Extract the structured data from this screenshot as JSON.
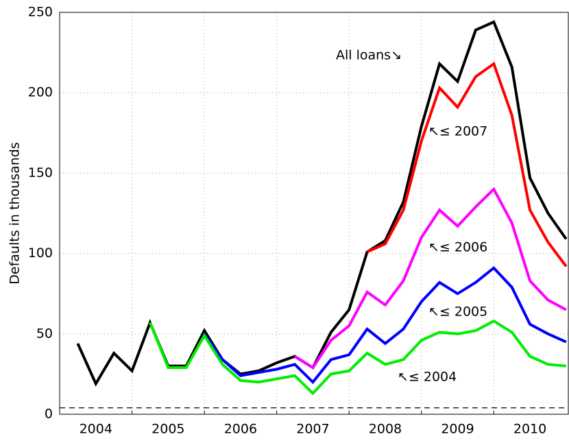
{
  "chart_data": {
    "type": "line",
    "y_label": "Defaults in thousands",
    "x": [
      2004.25,
      2004.5,
      2004.75,
      2005.0,
      2005.25,
      2005.5,
      2005.75,
      2006.0,
      2006.25,
      2006.5,
      2006.75,
      2007.0,
      2007.25,
      2007.5,
      2007.75,
      2008.0,
      2008.25,
      2008.5,
      2008.75,
      2009.0,
      2009.25,
      2009.5,
      2009.75,
      2010.0,
      2010.25,
      2010.5,
      2010.75,
      2011.0
    ],
    "series": [
      {
        "color": "#000000",
        "values": [
          44,
          19,
          38,
          27,
          57,
          30,
          30,
          52,
          34,
          25,
          27,
          32,
          36,
          29,
          51,
          65,
          101,
          108,
          132,
          179,
          218,
          207,
          239,
          244,
          216,
          147,
          125,
          109
        ]
      },
      {
        "color": "#ff0000",
        "values": [
          null,
          null,
          null,
          null,
          null,
          null,
          null,
          null,
          null,
          null,
          null,
          null,
          null,
          null,
          null,
          null,
          101,
          106,
          127,
          170,
          203,
          191,
          210,
          218,
          186,
          127,
          107,
          92
        ]
      },
      {
        "color": "#ff00ff",
        "values": [
          null,
          null,
          null,
          null,
          null,
          null,
          null,
          null,
          null,
          null,
          null,
          null,
          36,
          29,
          46,
          55,
          76,
          68,
          83,
          110,
          127,
          117,
          129,
          140,
          119,
          83,
          71,
          65
        ]
      },
      {
        "color": "#0000ff",
        "values": [
          null,
          null,
          null,
          null,
          null,
          null,
          null,
          50,
          34,
          24,
          26,
          28,
          31,
          20,
          34,
          37,
          53,
          44,
          53,
          70,
          82,
          75,
          82,
          91,
          79,
          56,
          50,
          45
        ]
      },
      {
        "color": "#00ee00",
        "values": [
          null,
          null,
          null,
          null,
          57,
          29,
          29,
          49,
          31,
          21,
          20,
          22,
          24,
          13,
          25,
          27,
          38,
          31,
          34,
          46,
          51,
          50,
          52,
          58,
          51,
          36,
          31,
          30
        ]
      }
    ],
    "annotations": [
      "All loans↘",
      "↖≤ 2007",
      "↖≤ 2006",
      "↖≤ 2005",
      "↖≤ 2004"
    ],
    "hline": {
      "value": 4,
      "style": "dashed"
    },
    "xlim": [
      2004,
      2011.03
    ],
    "xticks": [
      {
        "value": 2004.5,
        "label": "2004"
      },
      {
        "value": 2005.5,
        "label": "2005"
      },
      {
        "value": 2006.5,
        "label": "2006"
      },
      {
        "value": 2007.5,
        "label": "2007"
      },
      {
        "value": 2008.5,
        "label": "2008"
      },
      {
        "value": 2009.5,
        "label": "2009"
      },
      {
        "value": 2010.5,
        "label": "2010"
      }
    ],
    "xgrid": [
      2005,
      2006,
      2007,
      2008,
      2009,
      2010
    ],
    "ylim": [
      0,
      250
    ],
    "yticks": [
      0,
      50,
      100,
      150,
      200,
      250
    ],
    "grid": true
  }
}
